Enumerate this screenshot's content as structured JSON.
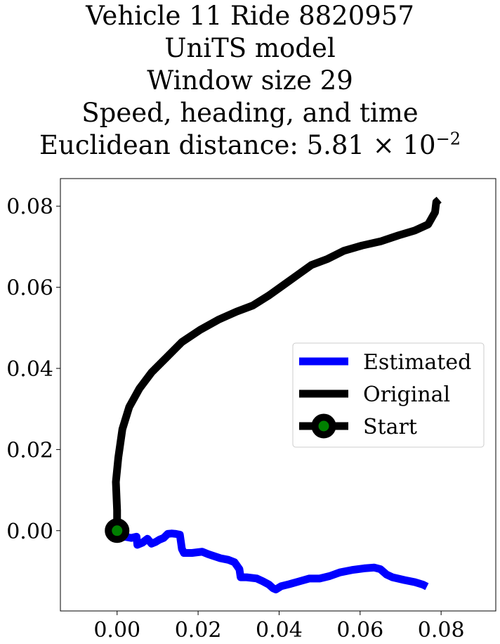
{
  "chart_data": {
    "type": "line",
    "title_lines": [
      "Vehicle 11 Ride 8820957",
      "UniTS model",
      "Window size 29",
      "Speed, heading, and time"
    ],
    "title_distance": {
      "prefix": "Euclidean distance: 5.81",
      "times": "×",
      "base": "10",
      "exponent": "−2"
    },
    "xlim": [
      -0.014,
      0.0935
    ],
    "ylim": [
      -0.0198,
      0.0868
    ],
    "x_ticks": [
      0.0,
      0.02,
      0.04,
      0.06,
      0.08
    ],
    "x_tick_labels": [
      "0.00",
      "0.02",
      "0.04",
      "0.06",
      "0.08"
    ],
    "y_ticks": [
      0.0,
      0.02,
      0.04,
      0.06,
      0.08
    ],
    "y_tick_labels": [
      "0.00",
      "0.02",
      "0.04",
      "0.06",
      "0.08"
    ],
    "grid": false,
    "legend_position": "center-right",
    "series": [
      {
        "name": "Estimated",
        "color": "#0000ff",
        "points": [
          [
            0,
            0
          ],
          [
            0.0005,
            -0.0018
          ],
          [
            0.002,
            -0.0015
          ],
          [
            0.0035,
            -0.0018
          ],
          [
            0.0048,
            -0.0015
          ],
          [
            0.005,
            -0.0035
          ],
          [
            0.0062,
            -0.003
          ],
          [
            0.0075,
            -0.002
          ],
          [
            0.0085,
            -0.0032
          ],
          [
            0.0095,
            -0.0028
          ],
          [
            0.0105,
            -0.0022
          ],
          [
            0.0115,
            -0.0018
          ],
          [
            0.0125,
            -0.0008
          ],
          [
            0.0135,
            -0.0007
          ],
          [
            0.0145,
            -0.0008
          ],
          [
            0.0155,
            -0.001
          ],
          [
            0.016,
            -0.0045
          ],
          [
            0.0165,
            -0.0055
          ],
          [
            0.0185,
            -0.0055
          ],
          [
            0.021,
            -0.0052
          ],
          [
            0.0225,
            -0.0058
          ],
          [
            0.024,
            -0.0063
          ],
          [
            0.0255,
            -0.0068
          ],
          [
            0.0275,
            -0.0072
          ],
          [
            0.029,
            -0.0078
          ],
          [
            0.0302,
            -0.0095
          ],
          [
            0.0305,
            -0.0115
          ],
          [
            0.032,
            -0.0115
          ],
          [
            0.0345,
            -0.0118
          ],
          [
            0.036,
            -0.0125
          ],
          [
            0.0375,
            -0.0133
          ],
          [
            0.0385,
            -0.0142
          ],
          [
            0.0392,
            -0.0145
          ],
          [
            0.0405,
            -0.0137
          ],
          [
            0.0425,
            -0.0132
          ],
          [
            0.045,
            -0.0125
          ],
          [
            0.0475,
            -0.0118
          ],
          [
            0.05,
            -0.0118
          ],
          [
            0.0525,
            -0.0112
          ],
          [
            0.055,
            -0.0103
          ],
          [
            0.058,
            -0.0097
          ],
          [
            0.061,
            -0.0093
          ],
          [
            0.0635,
            -0.0091
          ],
          [
            0.065,
            -0.0095
          ],
          [
            0.0665,
            -0.0108
          ],
          [
            0.068,
            -0.0115
          ],
          [
            0.071,
            -0.0122
          ],
          [
            0.0735,
            -0.0127
          ],
          [
            0.0755,
            -0.0133
          ],
          [
            0.0765,
            -0.0138
          ]
        ]
      },
      {
        "name": "Original",
        "color": "#000000",
        "points": [
          [
            0,
            0
          ],
          [
            0,
            0.005
          ],
          [
            -0.0003,
            0.012
          ],
          [
            0.0003,
            0.018
          ],
          [
            0.0013,
            0.025
          ],
          [
            0.003,
            0.0305
          ],
          [
            0.0055,
            0.035
          ],
          [
            0.0085,
            0.039
          ],
          [
            0.012,
            0.0425
          ],
          [
            0.016,
            0.0465
          ],
          [
            0.0205,
            0.0495
          ],
          [
            0.025,
            0.052
          ],
          [
            0.0295,
            0.054
          ],
          [
            0.0335,
            0.0555
          ],
          [
            0.0375,
            0.058
          ],
          [
            0.041,
            0.0605
          ],
          [
            0.0445,
            0.063
          ],
          [
            0.048,
            0.0655
          ],
          [
            0.052,
            0.067
          ],
          [
            0.056,
            0.069
          ],
          [
            0.0605,
            0.0703
          ],
          [
            0.065,
            0.0713
          ],
          [
            0.0695,
            0.0728
          ],
          [
            0.0735,
            0.074
          ],
          [
            0.0768,
            0.0755
          ],
          [
            0.0785,
            0.0785
          ],
          [
            0.0788,
            0.081
          ],
          [
            0.0795,
            0.0816
          ]
        ]
      }
    ],
    "start_point": {
      "name": "Start",
      "x": 0.0,
      "y": 0.0,
      "edge_color": "#000000",
      "face_color": "#008000"
    }
  }
}
